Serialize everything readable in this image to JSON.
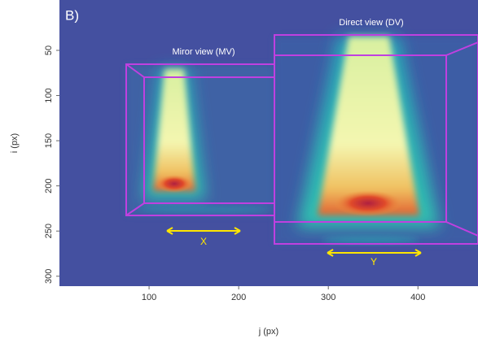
{
  "chart_data": {
    "type": "image",
    "panel_label": "B)",
    "annotations": [
      "Miror view (MV)",
      "Direct view (DV)",
      "X",
      "Y"
    ],
    "x_label": "j (px)",
    "y_label": "i (px)",
    "xlim": [
      0,
      467
    ],
    "ylim": [
      311,
      0
    ],
    "xticks": [
      100,
      200,
      300,
      400
    ],
    "yticks": [
      50,
      100,
      150,
      200,
      250,
      300
    ]
  }
}
